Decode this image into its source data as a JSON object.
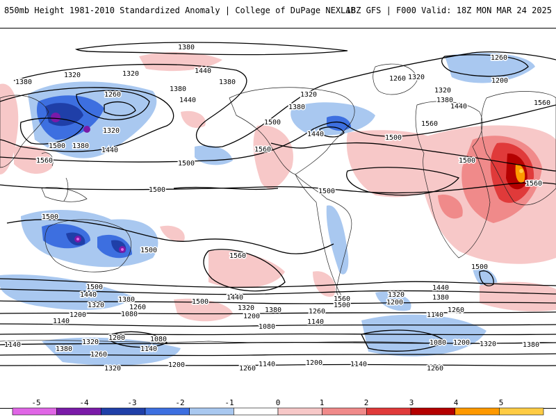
{
  "header": {
    "left_title": "850mb Height 1981-2010 Standardized Anomaly | College of DuPage NEXLAB",
    "right_title": "18Z GFS | F000 Valid: 18Z MON MAR 24 2025"
  },
  "contour_labels": [
    "1080",
    "1140",
    "1200",
    "1260",
    "1320",
    "1380",
    "1440",
    "1500",
    "1560"
  ],
  "colorbar": {
    "ticks": [
      "-5",
      "-4",
      "-3",
      "-2",
      "-1",
      "0",
      "1",
      "2",
      "3",
      "4",
      "5"
    ],
    "colors": [
      "#e066e6",
      "#7a1aa8",
      "#1f3fa8",
      "#3d6fe0",
      "#a9c8f0",
      "#ffffff",
      "#f7c8c8",
      "#f08a8a",
      "#e03a3a",
      "#b40000",
      "#ff9900",
      "#ffcc44"
    ]
  }
}
